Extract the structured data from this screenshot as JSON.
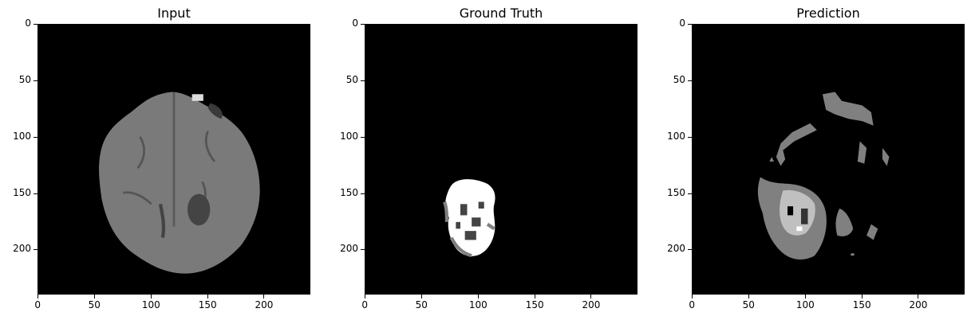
{
  "panels": [
    {
      "title": "Input"
    },
    {
      "title": "Ground Truth"
    },
    {
      "title": "Prediction"
    }
  ],
  "axis": {
    "x_ticks": [
      "0",
      "50",
      "100",
      "150",
      "200"
    ],
    "y_ticks": [
      "0",
      "50",
      "100",
      "150",
      "200"
    ],
    "range": [
      0,
      240
    ]
  },
  "colors": {
    "background": "#000000",
    "brain": "#7a7a7a",
    "lesion_dark": "#444444",
    "label_white": "#ffffff",
    "label_gray": "#808080",
    "label_light": "#c0c0c0"
  }
}
